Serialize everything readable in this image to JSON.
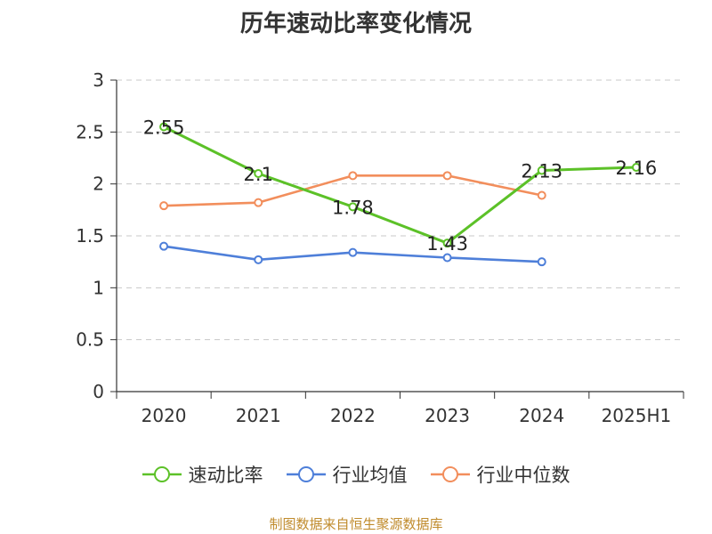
{
  "chart_data": {
    "type": "line",
    "title": "历年速动比率变化情况",
    "categories": [
      "2020",
      "2021",
      "2022",
      "2023",
      "2024",
      "2025H1"
    ],
    "ylim": [
      0,
      3
    ],
    "yticks": [
      "0",
      "0.5",
      "1",
      "1.5",
      "2",
      "2.5",
      "3"
    ],
    "grid": true,
    "legend_position": "bottom",
    "series": [
      {
        "name": "速动比率",
        "color": "#5cc128",
        "values": [
          2.55,
          2.1,
          1.78,
          1.43,
          2.13,
          2.16
        ],
        "data_labels": [
          "2.55",
          "2.1",
          "1.78",
          "1.43",
          "2.13",
          "2.16"
        ]
      },
      {
        "name": "行业均值",
        "color": "#4e7fd9",
        "values": [
          1.4,
          1.27,
          1.34,
          1.29,
          1.25,
          null
        ]
      },
      {
        "name": "行业中位数",
        "color": "#f28e5c",
        "values": [
          1.79,
          1.82,
          2.08,
          2.08,
          1.89,
          null
        ]
      }
    ]
  },
  "footer": {
    "source": "制图数据来自恒生聚源数据库"
  }
}
